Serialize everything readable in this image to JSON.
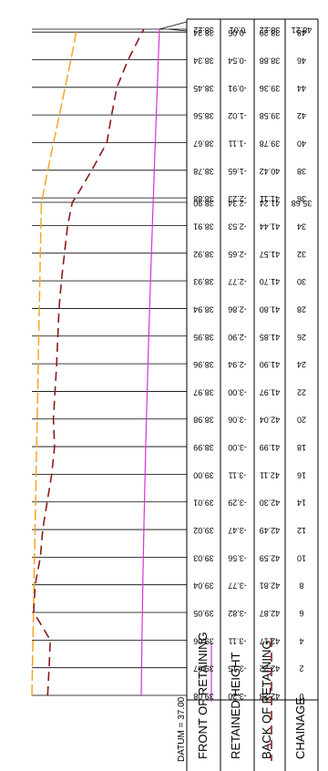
{
  "datum_label": "DATUM = 37.00",
  "row_headers": {
    "front": "FRONT OF RETAINING",
    "height": "RETAINED HEIGHT",
    "back": "BACK OF RETAINING",
    "chainage": "CHAINAGE"
  },
  "colors": {
    "front_line": "#f5a623",
    "back_line": "#8b1a1a",
    "centre_line": "#d633d6",
    "grid": "#000000"
  },
  "stations": [
    {
      "chainage": "0",
      "back": "42.28",
      "height": "-3.20",
      "front": "39.08"
    },
    {
      "chainage": "2",
      "back": "42.22",
      "height": "-3.15",
      "front": "39.07"
    },
    {
      "chainage": "4",
      "back": "42.17",
      "height": "-3.11",
      "front": "39.06"
    },
    {
      "chainage": "6",
      "back": "42.87",
      "height": "-3.82",
      "front": "39.05"
    },
    {
      "chainage": "8",
      "back": "42.81",
      "height": "-3.77",
      "front": "39.04"
    },
    {
      "chainage": "10",
      "back": "42.59",
      "height": "-3.56",
      "front": "39.03"
    },
    {
      "chainage": "12",
      "back": "42.49",
      "height": "-3.47",
      "front": "39.02"
    },
    {
      "chainage": "14",
      "back": "42.30",
      "height": "-3.29",
      "front": "39.01"
    },
    {
      "chainage": "16",
      "back": "42.11",
      "height": "-3.11",
      "front": "39.00"
    },
    {
      "chainage": "18",
      "back": "41.99",
      "height": "-3.00",
      "front": "38.99"
    },
    {
      "chainage": "20",
      "back": "42.04",
      "height": "-3.06",
      "front": "38.98"
    },
    {
      "chainage": "22",
      "back": "41.97",
      "height": "-3.00",
      "front": "38.97"
    },
    {
      "chainage": "24",
      "back": "41.90",
      "height": "-2.94",
      "front": "38.96"
    },
    {
      "chainage": "26",
      "back": "41.85",
      "height": "-2.90",
      "front": "38.95"
    },
    {
      "chainage": "28",
      "back": "41.80",
      "height": "-2.86",
      "front": "38.94"
    },
    {
      "chainage": "30",
      "back": "41.70",
      "height": "-2.77",
      "front": "38.93"
    },
    {
      "chainage": "32",
      "back": "41.57",
      "height": "-2.65",
      "front": "38.92"
    },
    {
      "chainage": "34",
      "back": "41.44",
      "height": "-2.53",
      "front": "38.91"
    },
    {
      "chainage": "35.68",
      "back": "41.24",
      "height": "-2.34",
      "front": "38.90"
    },
    {
      "chainage": "36",
      "back": "41.11",
      "height": "-2.23",
      "front": "38.88"
    },
    {
      "chainage": "38",
      "back": "40.42",
      "height": "-1.65",
      "front": "38.78"
    },
    {
      "chainage": "40",
      "back": "39.78",
      "height": "-1.11",
      "front": "38.67"
    },
    {
      "chainage": "42",
      "back": "39.58",
      "height": "-1.02",
      "front": "38.56"
    },
    {
      "chainage": "44",
      "back": "39.36",
      "height": "-0.91",
      "front": "38.45"
    },
    {
      "chainage": "46",
      "back": "38.88",
      "height": "-0.54",
      "front": "38.34"
    },
    {
      "chainage": "48",
      "back": "38.29",
      "height": "-0.05",
      "front": "38.24"
    },
    {
      "chainage": "48.21",
      "back": "38.22",
      "height": "0.01",
      "front": "38.22"
    }
  ]
}
